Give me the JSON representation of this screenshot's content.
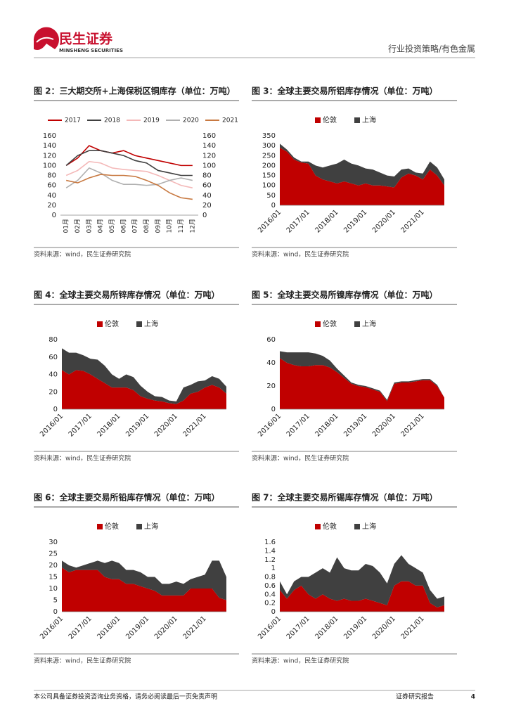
{
  "header": {
    "logo_cn": "民生证券",
    "logo_en": "MINSHENG SECURITIES",
    "section": "行业投资策略/有色金属"
  },
  "chart_data": [
    {
      "type": "line",
      "title": "图 2：三大期交所+上海保税区铜库存（单位：万吨）",
      "source": "资料来源：wind，民生证券研究院",
      "categories": [
        "01月",
        "02月",
        "03月",
        "04月",
        "05月",
        "06月",
        "07月",
        "08月",
        "09月",
        "10月",
        "11月",
        "12月"
      ],
      "series": [
        {
          "name": "2017",
          "color": "#c00000",
          "values": [
            100,
            115,
            140,
            130,
            125,
            130,
            120,
            115,
            110,
            105,
            100,
            100
          ]
        },
        {
          "name": "2018",
          "color": "#404040",
          "values": [
            100,
            120,
            130,
            130,
            125,
            120,
            110,
            105,
            90,
            85,
            80,
            80
          ]
        },
        {
          "name": "2019",
          "color": "#f4b8b8",
          "values": [
            80,
            90,
            108,
            105,
            95,
            92,
            90,
            88,
            80,
            70,
            60,
            55
          ]
        },
        {
          "name": "2020",
          "color": "#b0b0b0",
          "values": [
            55,
            70,
            95,
            85,
            70,
            62,
            62,
            60,
            62,
            70,
            75,
            70
          ]
        },
        {
          "name": "2021",
          "color": "#c87941",
          "values": [
            70,
            65,
            75,
            82,
            80,
            80,
            78,
            70,
            60,
            45,
            35,
            32
          ]
        }
      ],
      "ylim": [
        0,
        160
      ],
      "yticks": [
        0,
        20,
        40,
        60,
        80,
        100,
        120,
        140,
        160
      ],
      "y2lim": [
        0,
        160
      ],
      "y2ticks": [
        0,
        20,
        40,
        60,
        80,
        100,
        120,
        140,
        160
      ]
    },
    {
      "type": "stacked_area",
      "title": "图 3：全球主要交易所铝库存情况（单位：万吨）",
      "source": "资料来源：wind，民生证券研究院",
      "x": [
        "2016/01",
        "2016/04",
        "2016/07",
        "2016/10",
        "2017/01",
        "2017/04",
        "2017/07",
        "2017/10",
        "2018/01",
        "2018/04",
        "2018/07",
        "2018/10",
        "2019/01",
        "2019/04",
        "2019/07",
        "2019/10",
        "2020/01",
        "2020/04",
        "2020/07",
        "2020/10",
        "2021/01",
        "2021/04",
        "2021/07",
        "2021/10"
      ],
      "xticks": [
        "2016/01",
        "2017/01",
        "2018/01",
        "2019/01",
        "2020/01",
        "2021/01"
      ],
      "series": [
        {
          "name": "伦敦",
          "color": "#c00000",
          "values": [
            290,
            270,
            230,
            215,
            210,
            150,
            130,
            120,
            110,
            120,
            110,
            100,
            110,
            100,
            100,
            95,
            90,
            140,
            160,
            150,
            130,
            180,
            150,
            100
          ]
        },
        {
          "name": "上海",
          "color": "#404040",
          "values": [
            20,
            10,
            10,
            5,
            10,
            50,
            60,
            80,
            100,
            110,
            100,
            100,
            75,
            80,
            65,
            55,
            55,
            40,
            25,
            15,
            30,
            40,
            40,
            30
          ]
        }
      ],
      "ylim": [
        0,
        350
      ],
      "yticks": [
        0,
        50,
        100,
        150,
        200,
        250,
        300,
        350
      ]
    },
    {
      "type": "stacked_area",
      "title": "图 4：全球主要交易所锌库存情况（单位：万吨）",
      "source": "资料来源：wind，民生证券研究院",
      "x": [
        "2016/01",
        "2016/04",
        "2016/07",
        "2016/10",
        "2017/01",
        "2017/04",
        "2017/07",
        "2017/10",
        "2018/01",
        "2018/04",
        "2018/07",
        "2018/10",
        "2019/01",
        "2019/04",
        "2019/07",
        "2019/10",
        "2020/01",
        "2020/04",
        "2020/07",
        "2020/10",
        "2021/01",
        "2021/04",
        "2021/07",
        "2021/10"
      ],
      "xticks": [
        "2016/01",
        "2017/01",
        "2018/01",
        "2019/01",
        "2020/01",
        "2021/01"
      ],
      "series": [
        {
          "name": "伦敦",
          "color": "#c00000",
          "values": [
            45,
            40,
            45,
            44,
            40,
            35,
            30,
            25,
            25,
            25,
            22,
            15,
            12,
            10,
            9,
            7,
            6,
            10,
            18,
            20,
            25,
            28,
            25,
            18
          ]
        },
        {
          "name": "上海",
          "color": "#404040",
          "values": [
            25,
            25,
            20,
            18,
            18,
            22,
            20,
            15,
            10,
            15,
            15,
            12,
            8,
            5,
            5,
            3,
            3,
            15,
            10,
            12,
            8,
            10,
            10,
            8
          ]
        }
      ],
      "ylim": [
        0,
        80
      ],
      "yticks": [
        0,
        20,
        40,
        60,
        80
      ]
    },
    {
      "type": "stacked_area",
      "title": "图 5：全球主要交易所镍库存情况（单位：万吨）",
      "source": "资料来源：wind，民生证券研究院",
      "x": [
        "2016/01",
        "2016/04",
        "2016/07",
        "2016/10",
        "2017/01",
        "2017/04",
        "2017/07",
        "2017/10",
        "2018/01",
        "2018/04",
        "2018/07",
        "2018/10",
        "2019/01",
        "2019/04",
        "2019/07",
        "2019/10",
        "2020/01",
        "2020/04",
        "2020/07",
        "2020/10",
        "2021/01",
        "2021/04",
        "2021/07",
        "2021/10"
      ],
      "xticks": [
        "2016/01",
        "2017/01",
        "2018/01",
        "2019/01",
        "2020/01",
        "2021/01"
      ],
      "series": [
        {
          "name": "伦敦",
          "color": "#c00000",
          "values": [
            44,
            40,
            38,
            37,
            37,
            38,
            38,
            36,
            32,
            27,
            22,
            20,
            19,
            17,
            15,
            7,
            22,
            23,
            23,
            24,
            25,
            25,
            20,
            10
          ]
        },
        {
          "name": "上海",
          "color": "#404040",
          "values": [
            6,
            9,
            11,
            12,
            12,
            10,
            8,
            6,
            3,
            2,
            1,
            1,
            1,
            1,
            1,
            1,
            1,
            1,
            1,
            1,
            1,
            1,
            1,
            0
          ]
        }
      ],
      "ylim": [
        0,
        60
      ],
      "yticks": [
        0,
        20,
        40,
        60
      ]
    },
    {
      "type": "stacked_area",
      "title": "图 6：全球主要交易所铅库存情况（单位：万吨）",
      "source": "资料来源：wind，民生证券研究院",
      "x": [
        "2016/01",
        "2016/04",
        "2016/07",
        "2016/10",
        "2017/01",
        "2017/04",
        "2017/07",
        "2017/10",
        "2018/01",
        "2018/04",
        "2018/07",
        "2018/10",
        "2019/01",
        "2019/04",
        "2019/07",
        "2019/10",
        "2020/01",
        "2020/04",
        "2020/07",
        "2020/10",
        "2021/01",
        "2021/04",
        "2021/07",
        "2021/10"
      ],
      "xticks": [
        "2016/01",
        "2017/01",
        "2018/01",
        "2019/01",
        "2020/01",
        "2021/01"
      ],
      "series": [
        {
          "name": "伦敦",
          "color": "#c00000",
          "values": [
            19,
            17,
            18,
            18,
            18,
            18,
            15,
            14,
            14,
            12,
            12,
            11,
            10,
            9,
            7,
            7,
            7,
            7,
            10,
            10,
            10,
            10,
            6,
            5
          ]
        },
        {
          "name": "上海",
          "color": "#404040",
          "values": [
            3,
            3,
            1,
            2,
            3,
            4,
            6,
            8,
            7,
            6,
            6,
            6,
            5,
            6,
            5,
            5,
            6,
            5,
            4,
            5,
            6,
            12,
            16,
            10
          ]
        }
      ],
      "ylim": [
        0,
        30
      ],
      "yticks": [
        0,
        5,
        10,
        15,
        20,
        25,
        30
      ]
    },
    {
      "type": "stacked_area",
      "title": "图 7：全球主要交易所锡库存情况（单位：万吨）",
      "source": "资料来源：wind，民生证券研究院",
      "x": [
        "2016/01",
        "2016/04",
        "2016/07",
        "2016/10",
        "2017/01",
        "2017/04",
        "2017/07",
        "2017/10",
        "2018/01",
        "2018/04",
        "2018/07",
        "2018/10",
        "2019/01",
        "2019/04",
        "2019/07",
        "2019/10",
        "2020/01",
        "2020/04",
        "2020/07",
        "2020/10",
        "2021/01",
        "2021/04",
        "2021/07",
        "2021/10"
      ],
      "xticks": [
        "2016/01",
        "2017/01",
        "2018/01",
        "2019/01",
        "2020/01",
        "2021/01"
      ],
      "series": [
        {
          "name": "伦敦",
          "color": "#c00000",
          "values": [
            0.5,
            0.3,
            0.5,
            0.6,
            0.4,
            0.3,
            0.4,
            0.3,
            0.25,
            0.3,
            0.25,
            0.25,
            0.3,
            0.25,
            0.2,
            0.15,
            0.6,
            0.7,
            0.7,
            0.6,
            0.6,
            0.2,
            0.1,
            0.15
          ]
        },
        {
          "name": "上海",
          "color": "#404040",
          "values": [
            0.2,
            0.1,
            0.2,
            0.2,
            0.4,
            0.6,
            0.6,
            0.6,
            1.0,
            0.7,
            0.7,
            0.7,
            0.8,
            0.8,
            0.7,
            0.5,
            0.5,
            0.6,
            0.4,
            0.4,
            0.3,
            0.3,
            0.2,
            0.2
          ]
        }
      ],
      "ylim": [
        0,
        1.6
      ],
      "yticks": [
        0,
        0.2,
        0.4,
        0.6,
        0.8,
        1,
        1.2,
        1.4,
        1.6
      ]
    }
  ],
  "footer": {
    "disclaimer": "本公司具备证券投资咨询业务资格，请务必阅读最后一页免责声明",
    "report_type": "证券研究报告",
    "page": "4"
  }
}
